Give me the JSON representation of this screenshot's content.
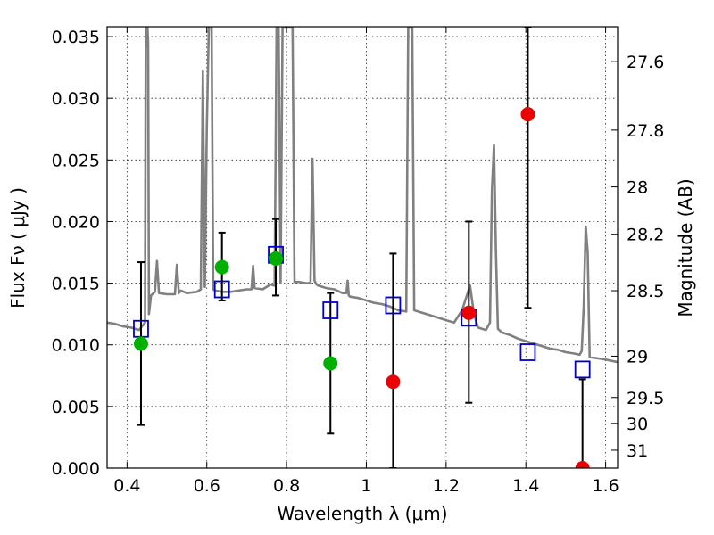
{
  "chart_data": {
    "type": "scatter",
    "title": "",
    "xlabel": "Wavelength  λ (μm)",
    "ylabel": "Flux  Fν  ( μJy )",
    "y2label": "Magnitude (AB)",
    "xlim": [
      0.35,
      1.63
    ],
    "ylim": [
      0.0,
      0.0358
    ],
    "grid": true,
    "x_ticks": [
      0.4,
      0.6,
      0.8,
      1.0,
      1.2,
      1.4,
      1.6
    ],
    "x_tick_labels": [
      "0.4",
      "0.6",
      "0.8",
      "1",
      "1.2",
      "1.4",
      "1.6"
    ],
    "y_ticks": [
      0.0,
      0.005,
      0.01,
      0.015,
      0.02,
      0.025,
      0.03,
      0.035
    ],
    "y_tick_labels": [
      "0.000",
      "0.005",
      "0.010",
      "0.015",
      "0.020",
      "0.025",
      "0.030",
      "0.035"
    ],
    "y2_ticks": [
      {
        "label": "27.6",
        "flux": 0.03297
      },
      {
        "label": "27.8",
        "flux": 0.02742
      },
      {
        "label": "28",
        "flux": 0.02281
      },
      {
        "label": "28.2",
        "flux": 0.01897
      },
      {
        "label": "28.5",
        "flux": 0.01439
      },
      {
        "label": "29",
        "flux": 0.00908
      },
      {
        "label": "29.5",
        "flux": 0.00573
      },
      {
        "label": "30",
        "flux": 0.00363
      },
      {
        "label": "31",
        "flux": 0.00145
      }
    ],
    "colors": {
      "model": "#808080",
      "model_points": "#0000cc",
      "detections": "#00b000",
      "upper_limits": "#ee0000",
      "errorbar": "#000000"
    },
    "series": [
      {
        "type": "line",
        "x": [
          0.35,
          0.37,
          0.39,
          0.41,
          0.43,
          0.445,
          0.447,
          0.449,
          0.451,
          0.453,
          0.455,
          0.46,
          0.47,
          0.475,
          0.48,
          0.5,
          0.52,
          0.525,
          0.53,
          0.535,
          0.55,
          0.575,
          0.58,
          0.585,
          0.59,
          0.595,
          0.6,
          0.605,
          0.608,
          0.612,
          0.616,
          0.62,
          0.64,
          0.66,
          0.68,
          0.7,
          0.712,
          0.716,
          0.72,
          0.74,
          0.76,
          0.77,
          0.775,
          0.78,
          0.785,
          0.79,
          0.795,
          0.8,
          0.805,
          0.81,
          0.815,
          0.82,
          0.83,
          0.85,
          0.86,
          0.865,
          0.87,
          0.875,
          0.88,
          0.9,
          0.92,
          0.94,
          0.95,
          0.953,
          0.956,
          0.96,
          0.98,
          1.0,
          1.02,
          1.04,
          1.06,
          1.08,
          1.1,
          1.105,
          1.11,
          1.115,
          1.12,
          1.14,
          1.16,
          1.18,
          1.2,
          1.22,
          1.24,
          1.26,
          1.27,
          1.28,
          1.3,
          1.31,
          1.315,
          1.32,
          1.325,
          1.33,
          1.34,
          1.36,
          1.38,
          1.4,
          1.42,
          1.44,
          1.46,
          1.48,
          1.5,
          1.52,
          1.535,
          1.54,
          1.545,
          1.55,
          1.555,
          1.56,
          1.58,
          1.6,
          1.63
        ],
        "y": [
          0.0118,
          0.0117,
          0.0115,
          0.0114,
          0.0112,
          0.0118,
          0.034,
          0.036,
          0.036,
          0.0345,
          0.0125,
          0.014,
          0.0143,
          0.0168,
          0.0142,
          0.0141,
          0.0141,
          0.0165,
          0.0142,
          0.0144,
          0.0142,
          0.0143,
          0.0144,
          0.0145,
          0.0322,
          0.0147,
          0.0275,
          0.0358,
          0.0358,
          0.0358,
          0.0145,
          0.0144,
          0.0143,
          0.0143,
          0.0144,
          0.0145,
          0.0145,
          0.0164,
          0.0146,
          0.0145,
          0.0149,
          0.0148,
          0.0358,
          0.0358,
          0.015,
          0.0358,
          0.0358,
          0.0358,
          0.0358,
          0.0358,
          0.0358,
          0.0151,
          0.0151,
          0.015,
          0.015,
          0.0251,
          0.0152,
          0.0149,
          0.0148,
          0.0146,
          0.0145,
          0.0142,
          0.0142,
          0.0152,
          0.014,
          0.0139,
          0.0138,
          0.0136,
          0.0134,
          0.0133,
          0.0131,
          0.0128,
          0.0127,
          0.0358,
          0.0358,
          0.0358,
          0.0128,
          0.0126,
          0.0124,
          0.0122,
          0.012,
          0.0118,
          0.0128,
          0.0148,
          0.0125,
          0.0114,
          0.0112,
          0.0118,
          0.0225,
          0.0262,
          0.0175,
          0.0113,
          0.011,
          0.0108,
          0.0105,
          0.0103,
          0.0101,
          0.0099,
          0.0097,
          0.0096,
          0.0094,
          0.0093,
          0.0092,
          0.0095,
          0.013,
          0.0196,
          0.0175,
          0.009,
          0.0089,
          0.0088,
          0.0086
        ]
      },
      {
        "type": "scatter",
        "marker": "square",
        "x": [
          0.435,
          0.638,
          0.773,
          0.91,
          1.067,
          1.257,
          1.405,
          1.542
        ],
        "y": [
          0.0113,
          0.0145,
          0.0173,
          0.0128,
          0.0132,
          0.0122,
          0.0094,
          0.008
        ]
      },
      {
        "type": "scatter",
        "marker": "circle",
        "x": [
          0.435,
          0.638,
          0.773,
          0.91
        ],
        "y": [
          0.0101,
          0.0163,
          0.017,
          0.0085
        ],
        "yerr_low": [
          0.0035,
          0.0136,
          0.014,
          0.0028
        ],
        "yerr_high": [
          0.0167,
          0.0191,
          0.0202,
          0.0142
        ]
      },
      {
        "type": "scatter",
        "marker": "circle",
        "x": [
          1.067,
          1.257,
          1.405,
          1.542
        ],
        "y": [
          0.007,
          0.0126,
          0.0287,
          0.0
        ],
        "yerr_low": [
          0.0,
          0.0053,
          0.013,
          0.0
        ],
        "yerr_high": [
          0.0174,
          0.02,
          0.0358,
          0.0072
        ]
      }
    ]
  }
}
